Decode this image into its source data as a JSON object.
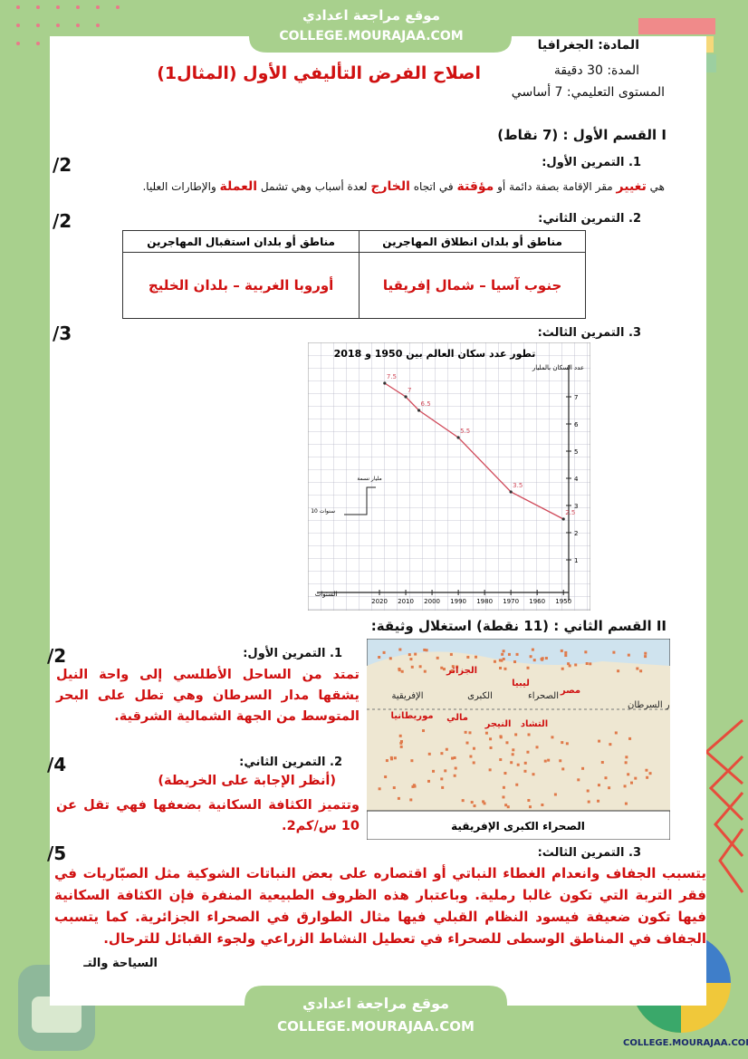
{
  "header": {
    "site_name": "موقع مراجعة اعدادي",
    "site_url": "COLLEGE.MOURAJAA.COM"
  },
  "info": {
    "subject": "المادة: الجغرافيا",
    "duration": "المدة: 30 دقيقة",
    "level": "المستوى التعليمي: 7 أساسي"
  },
  "title": "اصلاح الفرض التأليفي الأول (المثال1)",
  "part1": {
    "heading": "I القسم الأول : (7 نقاط)",
    "ex1": {
      "label": "1. التمرين الأول:",
      "score": "/2",
      "answer": [
        "هي ",
        "تغيير",
        " مقر الإقامة بصفة دائمة أو ",
        "مؤقتة",
        " في اتجاه ",
        "الخارج",
        " لعدة أسباب وهي تشمل ",
        "العملة",
        " والإطارات العليا."
      ]
    },
    "ex2": {
      "label": "2. التمرين الثاني:",
      "score": "/2",
      "table": {
        "headers": [
          "مناطق أو بلدان انطلاق المهاجرين",
          "مناطق أو بلدان استقبال المهاجرين"
        ],
        "rows": [
          [
            "جنوب آسيا – شمال إفريقيا",
            "أوروبا الغربية – بلدان الخليج"
          ]
        ]
      }
    },
    "ex3": {
      "label": "3. التمرين الثالث:",
      "score": "/3"
    }
  },
  "chart_data": {
    "type": "line",
    "title": "تطور عدد سكان العالم بين 1950 و 2018",
    "y_label": "عدد السكان بالمليار",
    "x_label": "السنوات",
    "color": "#d04a5a",
    "x": [
      1950,
      1970,
      1990,
      2005,
      2010,
      2018
    ],
    "values": [
      2.5,
      3.5,
      5.5,
      6.5,
      7,
      7.5
    ],
    "xlim": [
      2030,
      1948
    ],
    "ylim": [
      0,
      8
    ],
    "xticks": [
      1950,
      1960,
      1970,
      1980,
      1990,
      2000,
      2010,
      2020
    ],
    "yticks": [
      1,
      2,
      3,
      4,
      5,
      6,
      7
    ],
    "annotations": [
      "10 سنوات",
      "مليار نسمة"
    ],
    "grid": true
  },
  "part2": {
    "heading": "II القسم الثاني : (11 نقطة) استغلال وثيقة:",
    "ex1": {
      "label": "1. التمرين الأول:",
      "score": "/2",
      "answer": "تمتد من الساحل الأطلسي إلى واحة النيل يشقها مدار السرطان وهي تطل على البحر المتوسط من الجهة الشمالية الشرقية."
    },
    "ex2": {
      "label": "2. التمرين الثاني:",
      "score": "/4",
      "answer": [
        "(أنظر الإجابة على الخريطة)",
        "وتتميز الكثافة السكانية بضعفها فهي تقل عن 10 س/كم2."
      ]
    },
    "ex3": {
      "label": "3. التمرين الثالث:",
      "score": "/5",
      "answer": "يتسبب الجفاف وانعدام الغطاء النباتي أو اقتصاره على بعض النباتات الشوكية مثل الصبّاريات في فقر التربة التي تكون غالبا رملية. وباعتبار هذه الظروف الطبيعية المنفرة فإن الكثافة السكانية فيها تكون ضعيفة فيسود النظام القبلي فيها مثال الطوارق في الصحراء الجزائرية. كما يتسبب الجفاف في المناطق الوسطى للصحراء في تعطيل النشاط الزراعي ولجوء القبائل للترحال."
    },
    "map": {
      "caption": "الصحراء الكبرى الإفريقية",
      "labels": [
        "الجزائر",
        "ليبيا",
        "مصر",
        "الصحراء",
        "الكبرى",
        "الإفريقية",
        "موريطانيا",
        "مالي",
        "النيجر",
        "التشاد",
        "مدار السرطان"
      ]
    }
  },
  "footer": {
    "section_fragment": "السياحة والتـ",
    "site_name": "موقع مراجعة اعدادي",
    "site_url": "COLLEGE.MOURAJAA.COM",
    "logo_text": "COLLEGE.MOURAJAA.COM"
  }
}
